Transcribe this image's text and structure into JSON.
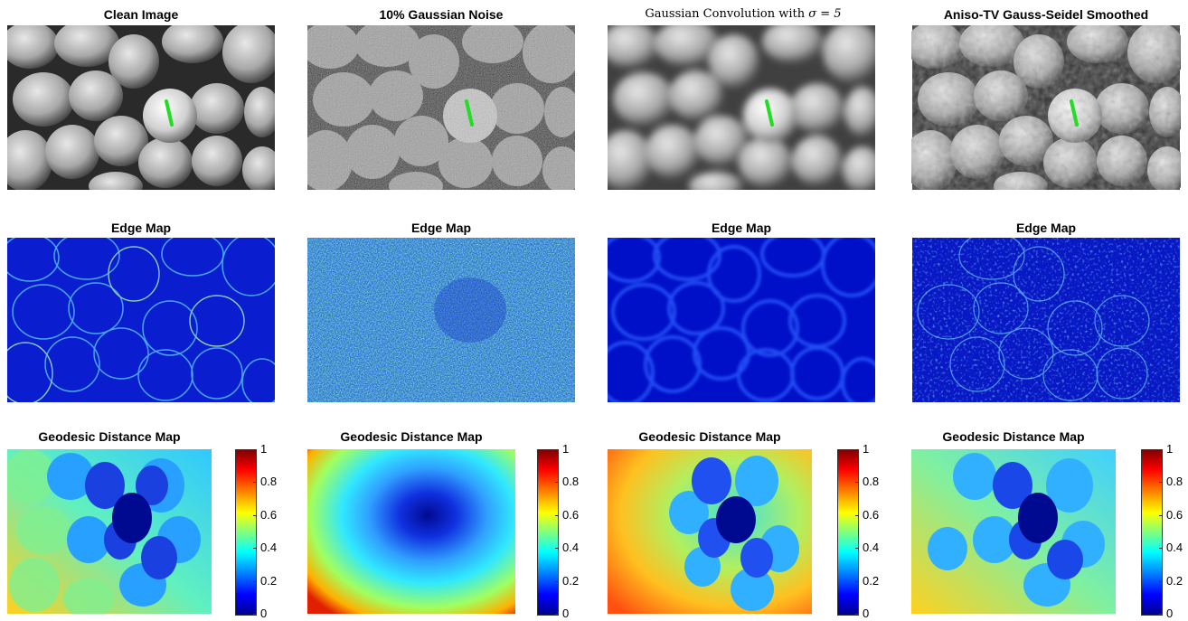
{
  "row1": {
    "titles": [
      "Clean Image",
      "10% Gaussian Noise",
      "Gaussian Convolution with",
      "Aniso-TV Gauss-Seidel Smoothed"
    ],
    "sigma_eq": "σ = 5"
  },
  "row2": {
    "titles": [
      "Edge Map",
      "Edge Map",
      "Edge Map",
      "Edge Map"
    ]
  },
  "row3": {
    "titles": [
      "Geodesic Distance Map",
      "Geodesic Distance Map",
      "Geodesic Distance Map",
      "Geodesic Distance Map"
    ]
  },
  "colorbar": {
    "ticks": [
      "1",
      "0.8",
      "0.6",
      "0.4",
      "0.2",
      "0"
    ],
    "range": [
      0,
      1
    ],
    "colormap": "jet"
  }
}
